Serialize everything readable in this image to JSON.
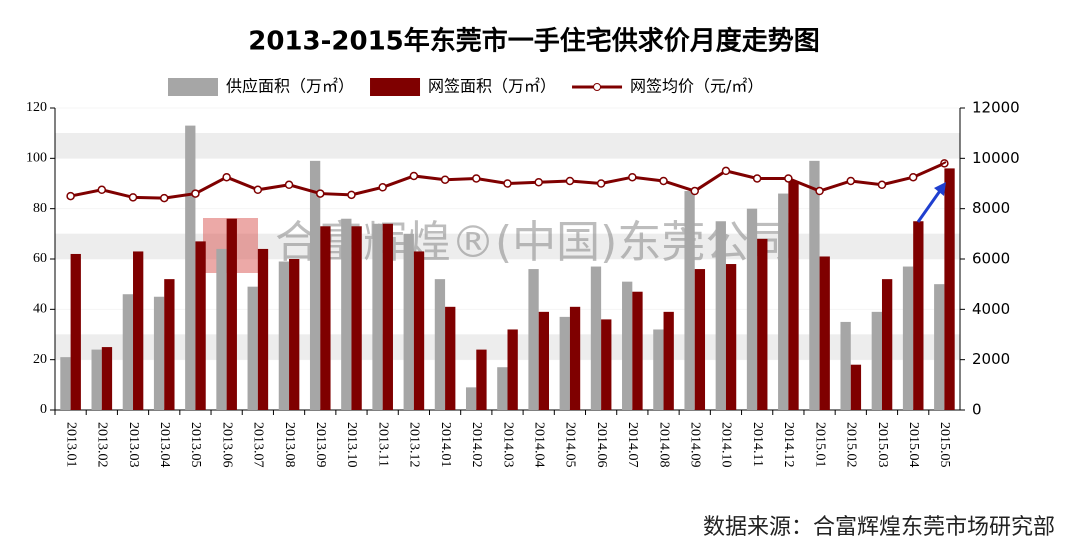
{
  "chart_data": {
    "type": "bar_line",
    "title": "2013-2015年东莞市一手住宅供求价月度走势图",
    "watermark": "合富辉煌®(中国)东莞公司",
    "source": "数据来源：合富辉煌东莞市场研究部",
    "categories": [
      "2013.01",
      "2013.02",
      "2013.03",
      "2013.04",
      "2013.05",
      "2013.06",
      "2013.07",
      "2013.08",
      "2013.09",
      "2013.10",
      "2013.11",
      "2013.12",
      "2014.01",
      "2014.02",
      "2014.03",
      "2014.04",
      "2014.05",
      "2014.06",
      "2014.07",
      "2014.08",
      "2014.09",
      "2014.10",
      "2014.11",
      "2014.12",
      "2015.01",
      "2015.02",
      "2015.03",
      "2015.04",
      "2015.05"
    ],
    "series": [
      {
        "name": "供应面积（万㎡）",
        "color": "#a6a6a6",
        "type": "bar",
        "values": [
          21,
          24,
          46,
          45,
          113,
          64,
          49,
          59,
          99,
          76,
          74,
          70,
          52,
          9,
          17,
          56,
          37,
          57,
          51,
          32,
          87,
          75,
          80,
          86,
          99,
          35,
          39,
          57,
          50
        ]
      },
      {
        "name": "网签面积（万㎡）",
        "color": "#7f0000",
        "type": "bar",
        "values": [
          62,
          25,
          63,
          52,
          67,
          76,
          64,
          60,
          73,
          73,
          74,
          63,
          41,
          24,
          32,
          39,
          41,
          36,
          47,
          39,
          56,
          58,
          68,
          91,
          61,
          18,
          52,
          75,
          96
        ]
      },
      {
        "name": "网签均价（元/㎡）",
        "color": "#7f0000",
        "type": "line",
        "axis": "y2",
        "values": [
          8500,
          8750,
          8450,
          8420,
          8600,
          9250,
          8750,
          8950,
          8600,
          8550,
          8850,
          9300,
          9150,
          9200,
          9000,
          9050,
          9100,
          9000,
          9250,
          9100,
          8700,
          9500,
          9200,
          9200,
          8700,
          9100,
          8950,
          9250,
          9800
        ]
      }
    ],
    "ylim": [
      0,
      120
    ],
    "yticks": [
      0,
      20,
      40,
      60,
      80,
      100,
      120
    ],
    "y2lim": [
      0,
      12000
    ],
    "y2ticks": [
      0,
      2000,
      4000,
      6000,
      8000,
      10000,
      12000
    ],
    "grid": "bands"
  }
}
